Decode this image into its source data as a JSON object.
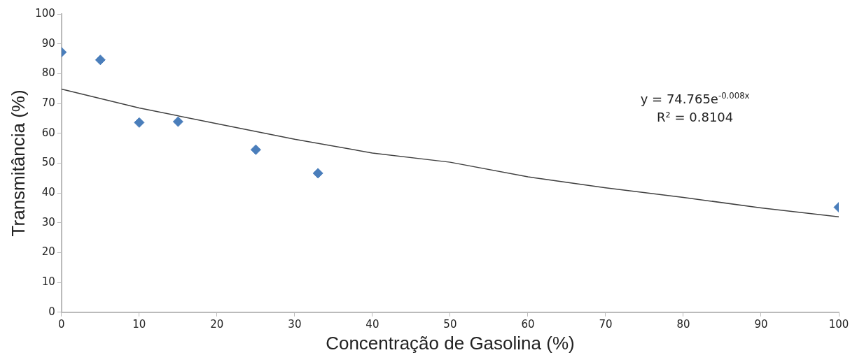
{
  "chart_data": {
    "type": "scatter",
    "xlabel": "Concentração de Gasolina (%)",
    "ylabel": "Transmitância (%)",
    "xlim": [
      0,
      100
    ],
    "xticks": [
      0,
      10,
      20,
      30,
      40,
      50,
      60,
      70,
      80,
      90,
      100
    ],
    "ylim": [
      0,
      100
    ],
    "yticks": [
      0,
      10,
      20,
      30,
      40,
      50,
      60,
      70,
      80,
      90,
      100
    ],
    "grid": false,
    "legend": false,
    "marker": "diamond",
    "series": [
      {
        "color": "#4a7ebb",
        "x": [
          0,
          5,
          10,
          15,
          25,
          33,
          100
        ],
        "values": [
          87.2,
          84.6,
          63.6,
          63.9,
          54.5,
          46.6,
          35.2
        ]
      },
      {
        "type": "line",
        "color": "#404040",
        "marker": "none",
        "x": [
          0,
          10,
          20,
          30,
          40,
          50,
          60,
          70,
          80,
          90,
          100
        ],
        "values": [
          74.8,
          68.5,
          63.2,
          58.0,
          53.4,
          50.3,
          45.4,
          41.7,
          38.5,
          35.0,
          32.0
        ]
      }
    ],
    "annotations": [
      "y = 74.765e$^{-0.008x}$",
      "R² = 0.8104"
    ]
  }
}
